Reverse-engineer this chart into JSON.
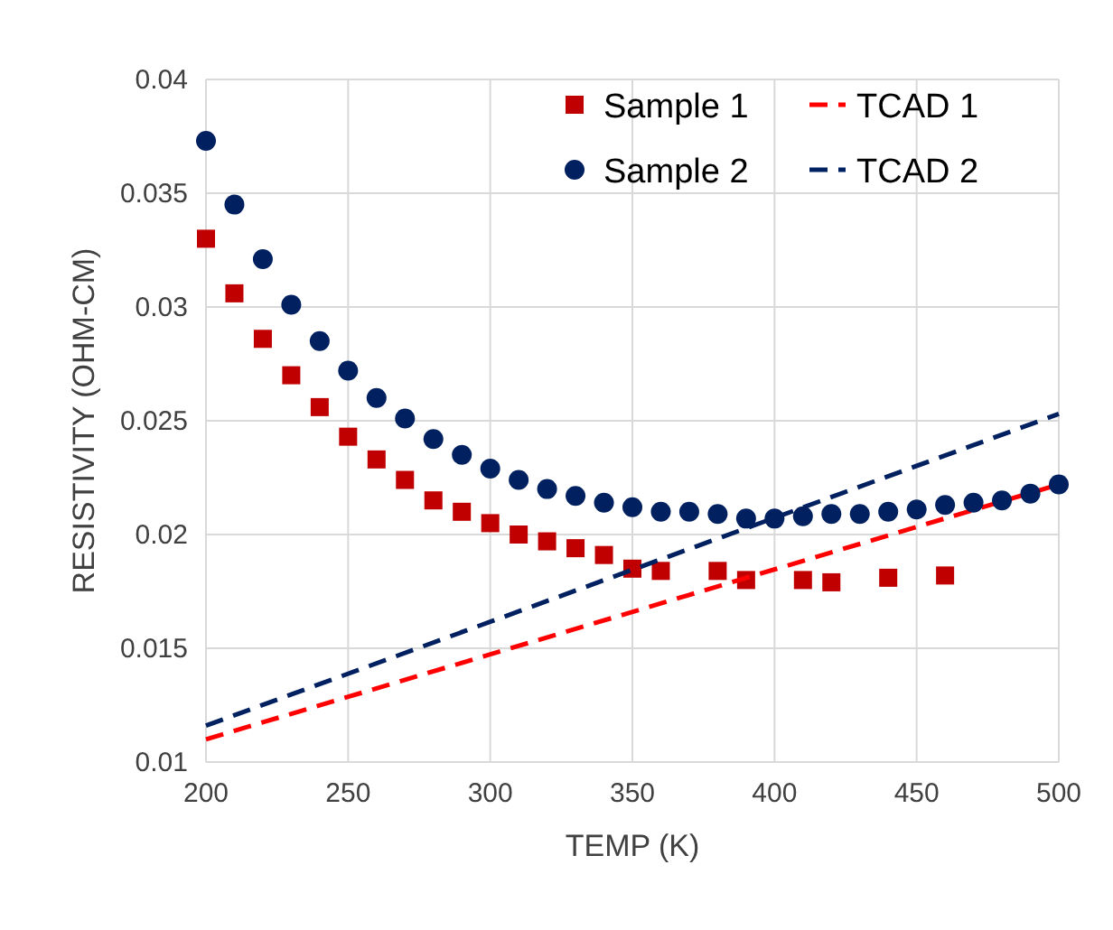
{
  "chart_data": {
    "type": "scatter",
    "xlabel": "TEMP (K)",
    "ylabel": "RESISTIVITY (OHM-CM)",
    "xlim": [
      200,
      500
    ],
    "xticks": [
      200,
      250,
      300,
      350,
      400,
      450,
      500
    ],
    "ylim": [
      0.01,
      0.04
    ],
    "yticks": [
      0.01,
      0.015,
      0.02,
      0.025,
      0.03,
      0.035,
      0.04
    ],
    "grid": true,
    "legend": "top right",
    "series": [
      {
        "name": "Sample 1",
        "marker": "square",
        "color": "#c00000",
        "x": [
          200,
          210,
          220,
          230,
          240,
          250,
          260,
          270,
          280,
          290,
          300,
          310,
          320,
          330,
          340,
          350,
          360,
          380,
          390,
          410,
          420,
          440,
          460
        ],
        "values": [
          0.033,
          0.0306,
          0.0286,
          0.027,
          0.0256,
          0.0243,
          0.0233,
          0.0224,
          0.0215,
          0.021,
          0.0205,
          0.02,
          0.0197,
          0.0194,
          0.0191,
          0.0185,
          0.0184,
          0.0184,
          0.018,
          0.018,
          0.0179,
          0.0181,
          0.0182
        ]
      },
      {
        "name": "TCAD 1",
        "type": "line",
        "line_style": "dashed",
        "marker": "none",
        "color": "#ff0000",
        "x": [
          200,
          500
        ],
        "values": [
          0.011,
          0.0222
        ]
      },
      {
        "name": "Sample 2",
        "marker": "circle",
        "color": "#002060",
        "x": [
          200,
          210,
          220,
          230,
          240,
          250,
          260,
          270,
          280,
          290,
          300,
          310,
          320,
          330,
          340,
          350,
          360,
          370,
          380,
          390,
          400,
          410,
          420,
          430,
          440,
          450,
          460,
          470,
          480,
          490,
          500
        ],
        "values": [
          0.0373,
          0.0345,
          0.0321,
          0.0301,
          0.0285,
          0.0272,
          0.026,
          0.0251,
          0.0242,
          0.0235,
          0.0229,
          0.0224,
          0.022,
          0.0217,
          0.0214,
          0.0212,
          0.021,
          0.021,
          0.0209,
          0.0207,
          0.0207,
          0.0208,
          0.0209,
          0.0209,
          0.021,
          0.0211,
          0.0213,
          0.0214,
          0.0215,
          0.0218,
          0.0222
        ]
      },
      {
        "name": "TCAD 2",
        "type": "line",
        "line_style": "dashed",
        "marker": "none",
        "color": "#002060",
        "x": [
          200,
          500
        ],
        "values": [
          0.0116,
          0.0253
        ]
      }
    ]
  }
}
